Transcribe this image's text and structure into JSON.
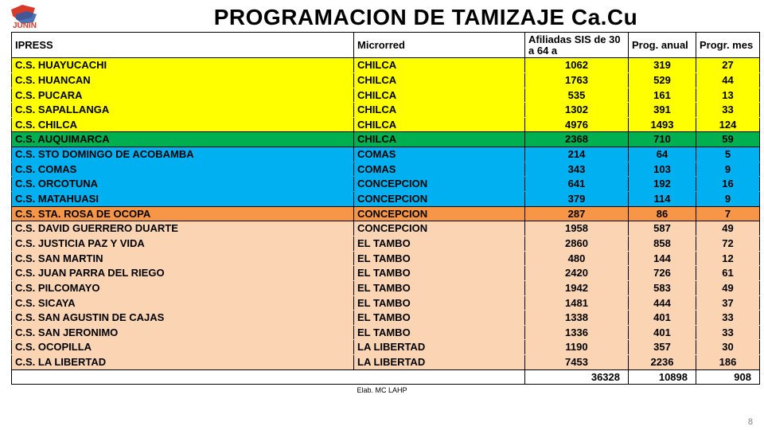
{
  "title": "PROGRAMACION DE TAMIZAJE Ca.Cu",
  "headers": {
    "ipress": "IPRESS",
    "microrred": "Microrred",
    "afiliadas": "Afiliadas SIS de 30  a 64 a",
    "anual": "Prog. anual",
    "mes": "Progr. mes"
  },
  "rows": [
    {
      "group": 0,
      "ipress": "C.S. HUAYUCACHI",
      "microrred": "CHILCA",
      "afil": "1062",
      "anual": "319",
      "mes": "27"
    },
    {
      "group": 0,
      "ipress": "C.S. HUANCAN",
      "microrred": "CHILCA",
      "afil": "1763",
      "anual": "529",
      "mes": "44"
    },
    {
      "group": 0,
      "ipress": "C.S. PUCARA",
      "microrred": "CHILCA",
      "afil": "535",
      "anual": "161",
      "mes": "13"
    },
    {
      "group": 0,
      "ipress": "C.S. SAPALLANGA",
      "microrred": "CHILCA",
      "afil": "1302",
      "anual": "391",
      "mes": "33"
    },
    {
      "group": 0,
      "ipress": "C.S. CHILCA",
      "microrred": "CHILCA",
      "afil": "4976",
      "anual": "1493",
      "mes": "124"
    },
    {
      "group": 1,
      "ipress": "C.S. AUQUIMARCA",
      "microrred": "CHILCA",
      "afil": "2368",
      "anual": "710",
      "mes": "59"
    },
    {
      "group": 2,
      "ipress": "C.S. STO DOMINGO DE ACOBAMBA",
      "microrred": "COMAS",
      "afil": "214",
      "anual": "64",
      "mes": "5"
    },
    {
      "group": 2,
      "ipress": "C.S. COMAS",
      "microrred": "COMAS",
      "afil": "343",
      "anual": "103",
      "mes": "9"
    },
    {
      "group": 2,
      "ipress": "C.S. ORCOTUNA",
      "microrred": "CONCEPCION",
      "afil": "641",
      "anual": "192",
      "mes": "16"
    },
    {
      "group": 2,
      "ipress": "C.S. MATAHUASI",
      "microrred": "CONCEPCION",
      "afil": "379",
      "anual": "114",
      "mes": "9"
    },
    {
      "group": 3,
      "ipress": "C.S. STA. ROSA DE OCOPA",
      "microrred": "CONCEPCION",
      "afil": "287",
      "anual": "86",
      "mes": "7"
    },
    {
      "group": 4,
      "ipress": "C.S. DAVID GUERRERO DUARTE",
      "microrred": "CONCEPCION",
      "afil": "1958",
      "anual": "587",
      "mes": "49"
    },
    {
      "group": 4,
      "ipress": "C.S. JUSTICIA PAZ Y VIDA",
      "microrred": "EL TAMBO",
      "afil": "2860",
      "anual": "858",
      "mes": "72"
    },
    {
      "group": 4,
      "ipress": "C.S. SAN MARTIN",
      "microrred": "EL TAMBO",
      "afil": "480",
      "anual": "144",
      "mes": "12"
    },
    {
      "group": 4,
      "ipress": "C.S. JUAN PARRA DEL RIEGO",
      "microrred": "EL TAMBO",
      "afil": "2420",
      "anual": "726",
      "mes": "61"
    },
    {
      "group": 4,
      "ipress": "C.S. PILCOMAYO",
      "microrred": "EL TAMBO",
      "afil": "1942",
      "anual": "583",
      "mes": "49"
    },
    {
      "group": 4,
      "ipress": "C.S. SICAYA",
      "microrred": "EL TAMBO",
      "afil": "1481",
      "anual": "444",
      "mes": "37"
    },
    {
      "group": 4,
      "ipress": "C.S. SAN AGUSTIN DE CAJAS",
      "microrred": "EL TAMBO",
      "afil": "1338",
      "anual": "401",
      "mes": "33"
    },
    {
      "group": 4,
      "ipress": "C.S. SAN JERONIMO",
      "microrred": "EL TAMBO",
      "afil": "1336",
      "anual": "401",
      "mes": "33"
    },
    {
      "group": 4,
      "ipress": "C.S. OCOPILLA",
      "microrred": "LA LIBERTAD",
      "afil": "1190",
      "anual": "357",
      "mes": "30"
    },
    {
      "group": 4,
      "ipress": "C.S. LA LIBERTAD",
      "microrred": "LA LIBERTAD",
      "afil": "7453",
      "anual": "2236",
      "mes": "186"
    }
  ],
  "totals": {
    "afil": "36328",
    "anual": "10898",
    "mes": "908"
  },
  "group_colors": {
    "0": "#ffff00",
    "1": "#00b050",
    "2": "#00b0f0",
    "3": "#f79646",
    "4": "#fbd4b4"
  },
  "footer": "Elab. MC LAHP",
  "slide_number": "8"
}
